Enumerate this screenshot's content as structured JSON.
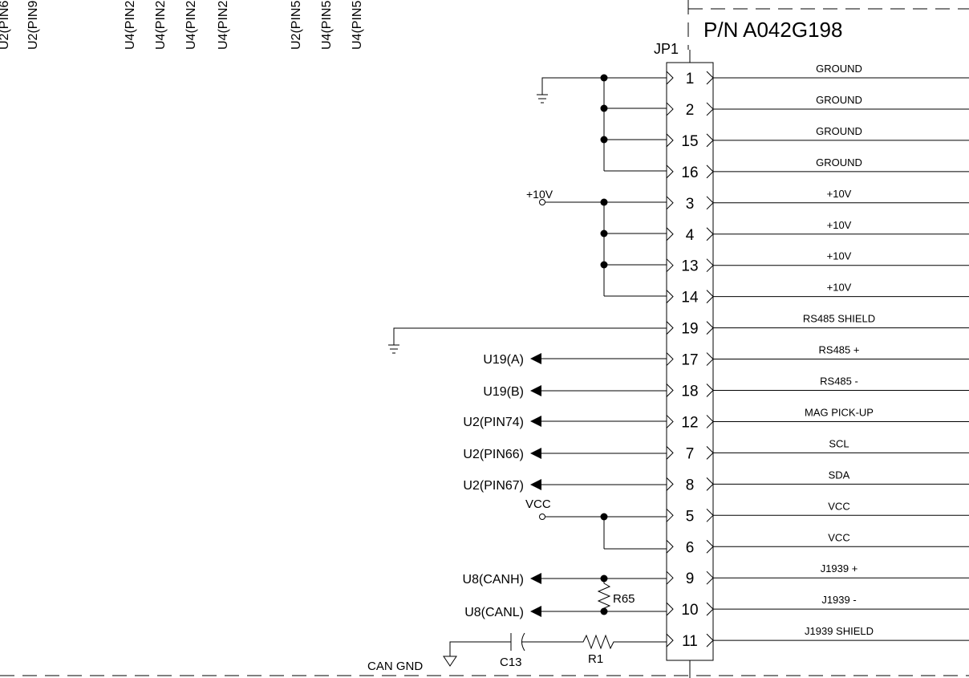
{
  "part_number": "P/N A042G198",
  "connector_label": "JP1",
  "top_labels": [
    "U2(PIN6",
    "U2(PIN9",
    "U4(PIN2",
    "U4(PIN2",
    "U4(PIN2",
    "U4(PIN2",
    "U2(PIN5",
    "U4(PIN5",
    "U4(PIN5"
  ],
  "pins": [
    {
      "number": "1",
      "signal": "GROUND"
    },
    {
      "number": "2",
      "signal": "GROUND"
    },
    {
      "number": "15",
      "signal": "GROUND"
    },
    {
      "number": "16",
      "signal": "GROUND"
    },
    {
      "number": "3",
      "signal": "+10V"
    },
    {
      "number": "4",
      "signal": "+10V"
    },
    {
      "number": "13",
      "signal": "+10V"
    },
    {
      "number": "14",
      "signal": "+10V"
    },
    {
      "number": "19",
      "signal": "RS485 SHIELD"
    },
    {
      "number": "17",
      "signal": "RS485 +"
    },
    {
      "number": "18",
      "signal": "RS485 -"
    },
    {
      "number": "12",
      "signal": "MAG PICK-UP"
    },
    {
      "number": "7",
      "signal": "SCL"
    },
    {
      "number": "8",
      "signal": "SDA"
    },
    {
      "number": "5",
      "signal": "VCC"
    },
    {
      "number": "6",
      "signal": "VCC"
    },
    {
      "number": "9",
      "signal": "J1939 +"
    },
    {
      "number": "10",
      "signal": "J1939 -"
    },
    {
      "number": "11",
      "signal": "J1939 SHIELD"
    }
  ],
  "nets": {
    "v10": "+10V",
    "vcc": "VCC",
    "can_gnd": "CAN GND"
  },
  "outputs": {
    "u19a": "U19(A)",
    "u19b": "U19(B)",
    "u2pin74": "U2(PIN74)",
    "u2pin66": "U2(PIN66)",
    "u2pin67": "U2(PIN67)",
    "u8canh": "U8(CANH)",
    "u8canl": "U8(CANL)"
  },
  "components": {
    "r65": "R65",
    "r1": "R1",
    "c13": "C13"
  }
}
